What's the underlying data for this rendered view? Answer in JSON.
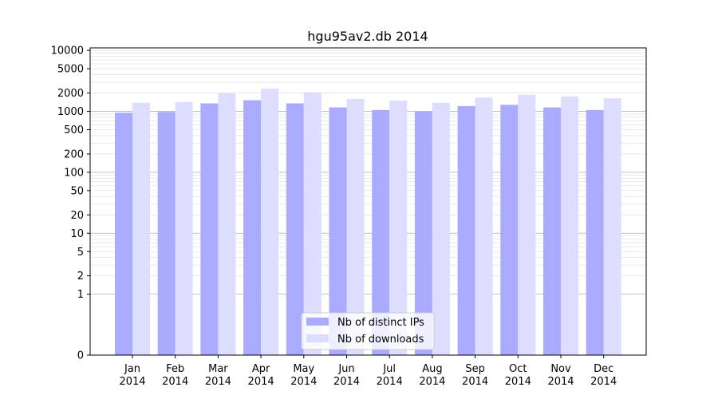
{
  "chart_data": {
    "type": "bar",
    "title": "hgu95av2.db 2014",
    "categories": [
      "Jan",
      "Feb",
      "Mar",
      "Apr",
      "May",
      "Jun",
      "Jul",
      "Aug",
      "Sep",
      "Oct",
      "Nov",
      "Dec"
    ],
    "category_year": "2014",
    "series": [
      {
        "name": "Nb of distinct IPs",
        "color": "#aaaaff",
        "values": [
          950,
          980,
          1350,
          1520,
          1350,
          1160,
          1050,
          990,
          1220,
          1280,
          1160,
          1050
        ]
      },
      {
        "name": "Nb of downloads",
        "color": "#ddddff",
        "values": [
          1380,
          1420,
          1990,
          2350,
          2060,
          1600,
          1500,
          1380,
          1680,
          1870,
          1760,
          1640
        ]
      }
    ],
    "yscale": "symlog",
    "yticks": [
      0,
      1,
      2,
      5,
      10,
      20,
      50,
      100,
      200,
      500,
      1000,
      2000,
      5000,
      10000
    ],
    "ylim": [
      0,
      11000
    ],
    "grid": true,
    "legend_position": "lower-center"
  }
}
